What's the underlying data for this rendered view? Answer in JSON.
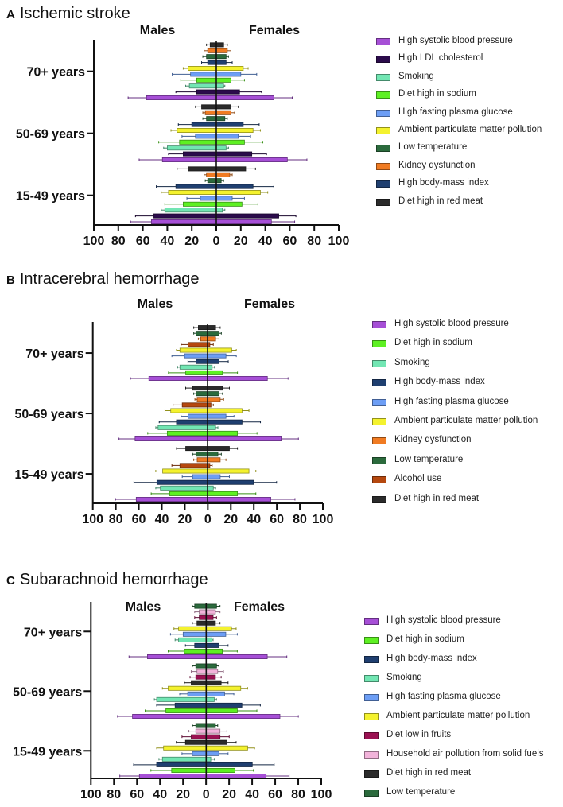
{
  "colors": {
    "sbp": "#a64fd6",
    "ldl": "#2b0b4b",
    "smoking": "#72e6b3",
    "sodium": "#5ef023",
    "fpg": "#6d9ef5",
    "pm": "#f4f22e",
    "lowtemp": "#2b6a3c",
    "kidney": "#f07b22",
    "bmi": "#1f3f70",
    "redmeat": "#2b2b2b",
    "alcohol": "#b5480f",
    "fruits": "#9b1152",
    "household": "#f2b3da"
  },
  "chart_data": [
    {
      "type": "bar",
      "orientation": "horizontal-population-pyramid",
      "letter": "A",
      "title": "Ischemic stroke",
      "left_label": "Males",
      "right_label": "Females",
      "xticks": [
        "100",
        "80",
        "60",
        "40",
        "20",
        "0",
        "20",
        "40",
        "60",
        "80",
        "100"
      ],
      "xlim": [
        -100,
        100
      ],
      "legend": [
        {
          "key": "sbp",
          "label": "High systolic blood pressure"
        },
        {
          "key": "ldl",
          "label": "High LDL cholesterol"
        },
        {
          "key": "smoking",
          "label": "Smoking"
        },
        {
          "key": "sodium",
          "label": "Diet high in sodium"
        },
        {
          "key": "fpg",
          "label": "High fasting plasma glucose"
        },
        {
          "key": "pm",
          "label": "Ambient particulate matter pollution"
        },
        {
          "key": "lowtemp",
          "label": "Low temperature"
        },
        {
          "key": "kidney",
          "label": "Kidney dysfunction"
        },
        {
          "key": "bmi",
          "label": "High body-mass index"
        },
        {
          "key": "redmeat",
          "label": "Diet high in red meat"
        }
      ],
      "bar_fields": [
        "risk",
        "male_value",
        "male_upper",
        "female_value",
        "female_upper"
      ],
      "groups": [
        {
          "label": "15-49 years",
          "bars": [
            [
              "sbp",
              53,
              70,
              45,
              64
            ],
            [
              "ldl",
              51,
              66,
              51,
              65
            ],
            [
              "smoking",
              42,
              45,
              5,
              7
            ],
            [
              "sodium",
              27,
              42,
              21,
              34
            ],
            [
              "fpg",
              13,
              24,
              13,
              23
            ],
            [
              "pm",
              39,
              45,
              36,
              42
            ],
            [
              "bmi",
              33,
              49,
              30,
              47
            ],
            [
              "lowtemp",
              7,
              9,
              4,
              6
            ],
            [
              "kidney",
              8,
              10,
              11,
              13
            ],
            [
              "redmeat",
              23,
              32,
              24,
              32
            ]
          ]
        },
        {
          "label": "50-69 years",
          "bars": [
            [
              "sbp",
              44,
              63,
              58,
              74
            ],
            [
              "ldl",
              27,
              39,
              29,
              41
            ],
            [
              "smoking",
              40,
              43,
              8,
              10
            ],
            [
              "sodium",
              30,
              47,
              23,
              38
            ],
            [
              "fpg",
              17,
              28,
              18,
              28
            ],
            [
              "pm",
              32,
              37,
              30,
              36
            ],
            [
              "bmi",
              20,
              31,
              22,
              35
            ],
            [
              "lowtemp",
              8,
              11,
              7,
              9
            ],
            [
              "kidney",
              9,
              11,
              12,
              15
            ],
            [
              "redmeat",
              12,
              17,
              12,
              18
            ]
          ]
        },
        {
          "label": "70+ years",
          "bars": [
            [
              "sbp",
              57,
              72,
              47,
              62
            ],
            [
              "ldl",
              16,
              33,
              19,
              37
            ],
            [
              "smoking",
              22,
              25,
              6,
              7
            ],
            [
              "sodium",
              16,
              29,
              12,
              23
            ],
            [
              "fpg",
              21,
              36,
              20,
              33
            ],
            [
              "pm",
              23,
              27,
              22,
              26
            ],
            [
              "bmi",
              7,
              12,
              8,
              13
            ],
            [
              "lowtemp",
              8,
              11,
              8,
              10
            ],
            [
              "kidney",
              7,
              10,
              9,
              12
            ],
            [
              "redmeat",
              5,
              8,
              6,
              9
            ]
          ]
        }
      ]
    },
    {
      "type": "bar",
      "orientation": "horizontal-population-pyramid",
      "letter": "B",
      "title": "Intracerebral hemorrhage",
      "left_label": "Males",
      "right_label": "Females",
      "xticks": [
        "100",
        "80",
        "60",
        "40",
        "20",
        "0",
        "20",
        "40",
        "60",
        "80",
        "100"
      ],
      "xlim": [
        -100,
        100
      ],
      "legend": [
        {
          "key": "sbp",
          "label": "High systolic blood pressure"
        },
        {
          "key": "sodium",
          "label": "Diet high in sodium"
        },
        {
          "key": "smoking",
          "label": "Smoking"
        },
        {
          "key": "bmi",
          "label": "High body-mass index"
        },
        {
          "key": "fpg",
          "label": "High fasting plasma glucose"
        },
        {
          "key": "pm",
          "label": "Ambient particulate matter pollution"
        },
        {
          "key": "kidney",
          "label": "Kidney dysfunction"
        },
        {
          "key": "lowtemp",
          "label": "Low temperature"
        },
        {
          "key": "alcohol",
          "label": "Alcohol use"
        },
        {
          "key": "redmeat",
          "label": "Diet high in red meat"
        }
      ],
      "bar_fields": [
        "risk",
        "male_value",
        "male_upper",
        "female_value",
        "female_upper"
      ],
      "groups": [
        {
          "label": "15-49 years",
          "bars": [
            [
              "sbp",
              62,
              80,
              55,
              76
            ],
            [
              "sodium",
              33,
              49,
              26,
              42
            ],
            [
              "smoking",
              41,
              45,
              5,
              7
            ],
            [
              "bmi",
              44,
              64,
              40,
              60
            ],
            [
              "fpg",
              13,
              22,
              11,
              19
            ],
            [
              "pm",
              39,
              45,
              36,
              42
            ],
            [
              "alcohol",
              24,
              31,
              2,
              4
            ],
            [
              "kidney",
              9,
              12,
              11,
              16
            ],
            [
              "lowtemp",
              10,
              13,
              9,
              12
            ],
            [
              "redmeat",
              19,
              27,
              19,
              26
            ]
          ]
        },
        {
          "label": "50-69 years",
          "bars": [
            [
              "sbp",
              63,
              77,
              64,
              79
            ],
            [
              "sodium",
              35,
              52,
              26,
              43
            ],
            [
              "smoking",
              43,
              45,
              7,
              9
            ],
            [
              "bmi",
              27,
              42,
              30,
              46
            ],
            [
              "fpg",
              17,
              23,
              16,
              23
            ],
            [
              "pm",
              32,
              37,
              30,
              36
            ],
            [
              "alcohol",
              22,
              30,
              3,
              5
            ],
            [
              "kidney",
              9,
              11,
              11,
              14
            ],
            [
              "lowtemp",
              10,
              12,
              10,
              13
            ],
            [
              "redmeat",
              13,
              19,
              13,
              19
            ]
          ]
        },
        {
          "label": "70+ years",
          "bars": [
            [
              "sbp",
              51,
              67,
              52,
              70
            ],
            [
              "sodium",
              19,
              34,
              13,
              26
            ],
            [
              "smoking",
              24,
              26,
              4,
              6
            ],
            [
              "bmi",
              10,
              17,
              10,
              18
            ],
            [
              "fpg",
              20,
              31,
              16,
              25
            ],
            [
              "pm",
              24,
              27,
              21,
              25
            ],
            [
              "alcohol",
              17,
              23,
              2,
              5
            ],
            [
              "kidney",
              6,
              8,
              7,
              10
            ],
            [
              "lowtemp",
              10,
              12,
              10,
              12
            ],
            [
              "redmeat",
              8,
              12,
              7,
              11
            ]
          ]
        }
      ]
    },
    {
      "type": "bar",
      "orientation": "horizontal-population-pyramid",
      "letter": "C",
      "title": "Subarachnoid hemorrhage",
      "left_label": "Males",
      "right_label": "Females",
      "xticks": [
        "100",
        "80",
        "60",
        "40",
        "20",
        "0",
        "20",
        "40",
        "60",
        "80",
        "100"
      ],
      "xlim": [
        -100,
        100
      ],
      "legend": [
        {
          "key": "sbp",
          "label": "High systolic blood pressure"
        },
        {
          "key": "sodium",
          "label": "Diet high in sodium"
        },
        {
          "key": "bmi",
          "label": "High body-mass index"
        },
        {
          "key": "smoking",
          "label": "Smoking"
        },
        {
          "key": "fpg",
          "label": "High fasting plasma glucose"
        },
        {
          "key": "pm",
          "label": "Ambient particulate matter pollution"
        },
        {
          "key": "fruits",
          "label": "Diet low in fruits"
        },
        {
          "key": "household",
          "label": "Household air pollution from solid fuels"
        },
        {
          "key": "redmeat",
          "label": "Diet high in red meat"
        },
        {
          "key": "lowtemp",
          "label": "Low temperature"
        }
      ],
      "bar_fields": [
        "risk",
        "male_value",
        "male_upper",
        "female_value",
        "female_upper"
      ],
      "groups": [
        {
          "label": "15-49 years",
          "bars": [
            [
              "sbp",
              58,
              75,
              52,
              72
            ],
            [
              "sodium",
              30,
              48,
              25,
              41
            ],
            [
              "bmi",
              43,
              63,
              40,
              59
            ],
            [
              "smoking",
              38,
              41,
              4,
              7
            ],
            [
              "fpg",
              12,
              21,
              11,
              19
            ],
            [
              "pm",
              37,
              43,
              36,
              42
            ],
            [
              "redmeat",
              18,
              26,
              18,
              26
            ],
            [
              "fruits",
              13,
              21,
              12,
              20
            ],
            [
              "household",
              9,
              15,
              12,
              18
            ],
            [
              "lowtemp",
              9,
              12,
              8,
              10
            ]
          ]
        },
        {
          "label": "50-69 years",
          "bars": [
            [
              "sbp",
              64,
              77,
              64,
              80
            ],
            [
              "sodium",
              35,
              53,
              27,
              44
            ],
            [
              "bmi",
              27,
              43,
              31,
              47
            ],
            [
              "smoking",
              43,
              45,
              7,
              9
            ],
            [
              "fpg",
              16,
              23,
              16,
              24
            ],
            [
              "pm",
              33,
              38,
              30,
              36
            ],
            [
              "redmeat",
              13,
              19,
              13,
              19
            ],
            [
              "fruits",
              9,
              14,
              8,
              13
            ],
            [
              "household",
              8,
              13,
              10,
              15
            ],
            [
              "lowtemp",
              9,
              12,
              9,
              11
            ]
          ]
        },
        {
          "label": "70+ years",
          "bars": [
            [
              "sbp",
              51,
              67,
              53,
              70
            ],
            [
              "sodium",
              19,
              33,
              14,
              27
            ],
            [
              "bmi",
              10,
              18,
              11,
              19
            ],
            [
              "smoking",
              24,
              27,
              5,
              6
            ],
            [
              "fpg",
              20,
              31,
              17,
              27
            ],
            [
              "pm",
              24,
              28,
              22,
              26
            ],
            [
              "redmeat",
              8,
              12,
              8,
              12
            ],
            [
              "fruits",
              6,
              10,
              6,
              9
            ],
            [
              "household",
              6,
              10,
              8,
              12
            ],
            [
              "lowtemp",
              10,
              12,
              9,
              12
            ]
          ]
        }
      ]
    }
  ]
}
